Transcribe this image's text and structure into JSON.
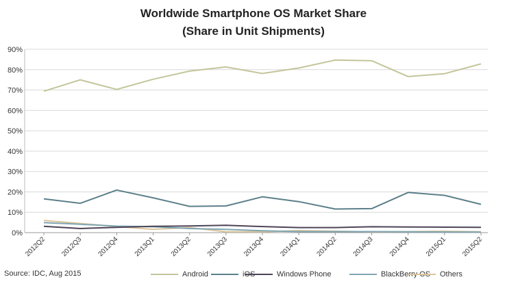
{
  "title_line1": "Worldwide Smartphone OS Market Share",
  "title_line2": "(Share in Unit Shipments)",
  "source": "Source: IDC, Aug 2015",
  "chart_data": {
    "type": "line",
    "title": "Worldwide Smartphone OS Market Share (Share in Unit Shipments)",
    "xlabel": "",
    "ylabel": "",
    "ylim": [
      0,
      90
    ],
    "yticks": [
      0,
      10,
      20,
      30,
      40,
      50,
      60,
      70,
      80,
      90
    ],
    "ytick_labels": [
      "0%",
      "10%",
      "20%",
      "30%",
      "40%",
      "50%",
      "60%",
      "70%",
      "80%",
      "90%"
    ],
    "categories": [
      "2012Q2",
      "2012Q3",
      "2012Q4",
      "2013Q1",
      "2013Q2",
      "2013Q3",
      "2013Q4",
      "2014Q1",
      "2014Q2",
      "2014Q3",
      "2014Q4",
      "2015Q1",
      "2015Q2"
    ],
    "grid": true,
    "legend_position": "bottom",
    "series": [
      {
        "name": "Android",
        "color": "#c3c59a",
        "values": [
          69.4,
          75.0,
          70.3,
          75.3,
          79.3,
          81.3,
          78.1,
          80.8,
          84.7,
          84.4,
          76.6,
          78.0,
          82.8
        ]
      },
      {
        "name": "iOS",
        "color": "#5b7f8a",
        "values": [
          16.6,
          14.4,
          20.9,
          17.1,
          12.9,
          13.1,
          17.6,
          15.2,
          11.6,
          11.8,
          19.7,
          18.3,
          13.9
        ]
      },
      {
        "name": "Windows Phone",
        "color": "#4d4457",
        "values": [
          3.1,
          2.0,
          2.6,
          3.1,
          3.3,
          3.6,
          3.0,
          2.5,
          2.5,
          2.9,
          2.8,
          2.7,
          2.6
        ]
      },
      {
        "name": "BlackBerry OS",
        "color": "#7fa6b2",
        "values": [
          4.9,
          4.1,
          3.2,
          2.9,
          2.0,
          1.6,
          0.9,
          0.5,
          0.5,
          0.5,
          0.4,
          0.3,
          0.3
        ]
      },
      {
        "name": "Others",
        "color": "#dcc59b",
        "values": [
          6.0,
          4.5,
          3.0,
          1.6,
          2.5,
          0.4,
          0.4,
          1.0,
          0.7,
          0.4,
          0.5,
          0.7,
          0.4
        ]
      }
    ]
  }
}
